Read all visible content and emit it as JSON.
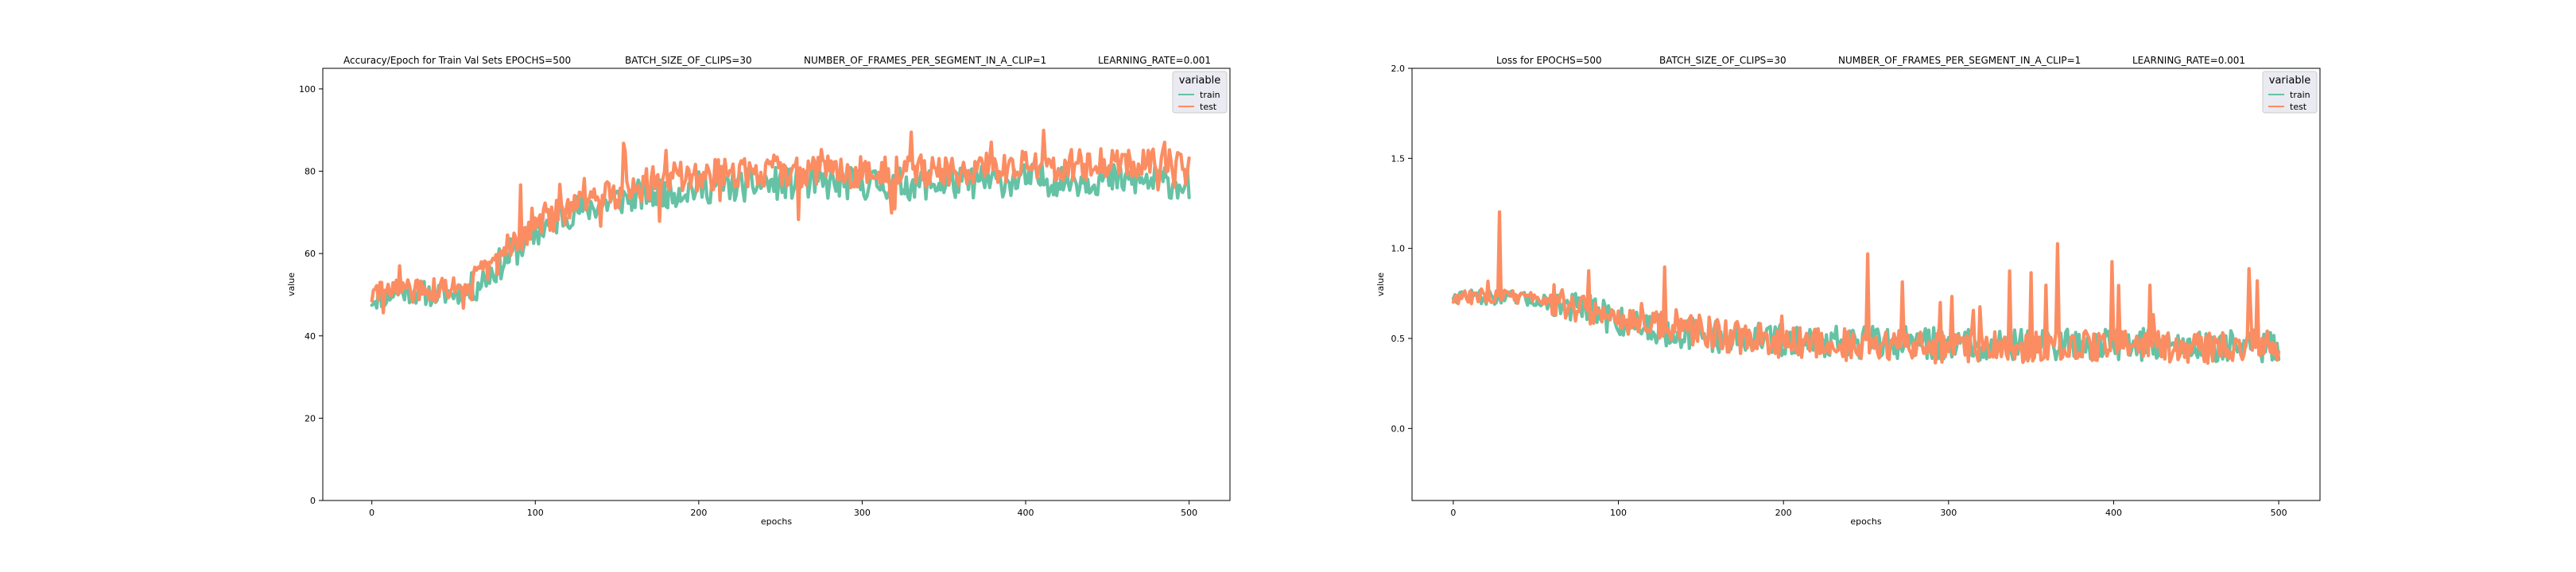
{
  "colors": {
    "train": "#66c2a5",
    "test": "#fc8d62",
    "legend_bg": "#eaeaf2"
  },
  "chart_data": [
    {
      "type": "line",
      "title_parts": [
        "Accuracy/Epoch for Train Val Sets EPOCHS=500",
        "BATCH_SIZE_OF_CLIPS=30",
        "NUMBER_OF_FRAMES_PER_SEGMENT_IN_A_CLIP=1",
        "LEARNING_RATE=0.001"
      ],
      "xlabel": "epochs",
      "ylabel": "value",
      "xlim": [
        -30,
        525
      ],
      "ylim": [
        0,
        105
      ],
      "xticks": [
        0,
        100,
        200,
        300,
        400,
        500
      ],
      "yticks": [
        0,
        20,
        40,
        60,
        80,
        100
      ],
      "legend": {
        "title": "variable",
        "position": "top-right"
      },
      "series": [
        {
          "name": "train",
          "color": "#66c2a5",
          "seed": 11,
          "kind": "acc_train",
          "key_x": [
            0,
            20,
            40,
            60,
            80,
            100,
            120,
            140,
            160,
            180,
            200,
            250,
            300,
            350,
            400,
            450,
            500
          ],
          "key_y": [
            49,
            51,
            50,
            51,
            58,
            65,
            70,
            72,
            74,
            75,
            76,
            77,
            77,
            77,
            78,
            78,
            77
          ]
        },
        {
          "name": "test",
          "color": "#fc8d62",
          "seed": 29,
          "kind": "acc_test",
          "key_x": [
            0,
            20,
            40,
            60,
            80,
            100,
            120,
            140,
            160,
            180,
            200,
            250,
            300,
            350,
            400,
            450,
            500
          ],
          "key_y": [
            50,
            51,
            51,
            52,
            60,
            68,
            70,
            74,
            76,
            78,
            79,
            80,
            80,
            80,
            81,
            82,
            83
          ]
        }
      ]
    },
    {
      "type": "line",
      "title_parts": [
        "Loss for  EPOCHS=500",
        "BATCH_SIZE_OF_CLIPS=30",
        "NUMBER_OF_FRAMES_PER_SEGMENT_IN_A_CLIP=1",
        "LEARNING_RATE=0.001"
      ],
      "xlabel": "epochs",
      "ylabel": "value",
      "xlim": [
        -25,
        525
      ],
      "ylim": [
        -0.4,
        2.0
      ],
      "xticks": [
        0,
        100,
        200,
        300,
        400,
        500
      ],
      "yticks": [
        0.0,
        0.5,
        1.0,
        1.5,
        2.0
      ],
      "ytick_labels": [
        "0.0",
        "0.5",
        "1.0",
        "1.5",
        "2.0"
      ],
      "legend": {
        "title": "variable",
        "position": "top-right"
      },
      "series": [
        {
          "name": "train",
          "color": "#66c2a5",
          "seed": 47,
          "kind": "loss_train",
          "key_x": [
            0,
            20,
            40,
            60,
            80,
            100,
            120,
            140,
            160,
            180,
            200,
            250,
            300,
            350,
            400,
            450,
            500
          ],
          "key_y": [
            0.74,
            0.73,
            0.72,
            0.7,
            0.66,
            0.6,
            0.56,
            0.53,
            0.51,
            0.5,
            0.49,
            0.48,
            0.47,
            0.47,
            0.47,
            0.46,
            0.46
          ]
        },
        {
          "name": "test",
          "color": "#fc8d62",
          "seed": 83,
          "kind": "loss_test",
          "key_x": [
            0,
            20,
            40,
            60,
            80,
            100,
            120,
            140,
            160,
            180,
            200,
            250,
            300,
            350,
            400,
            450,
            500
          ],
          "key_y": [
            0.72,
            0.74,
            0.73,
            0.72,
            0.66,
            0.62,
            0.6,
            0.56,
            0.52,
            0.5,
            0.48,
            0.46,
            0.45,
            0.45,
            0.46,
            0.45,
            0.45
          ]
        }
      ]
    }
  ]
}
